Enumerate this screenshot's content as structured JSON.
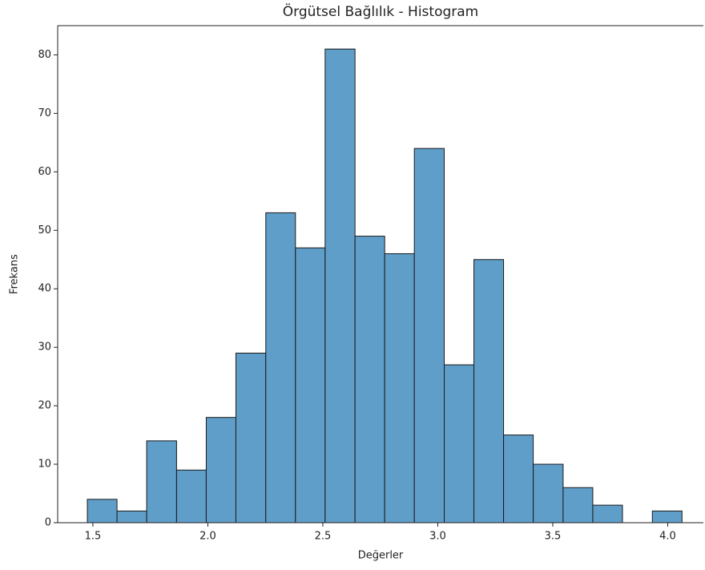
{
  "chart_data": {
    "type": "histogram",
    "title": "Örgütsel Bağlılık - Histogram",
    "x_label": "Değerler",
    "y_label": "Frekans",
    "bins": [
      1.476,
      1.605,
      1.734,
      1.864,
      1.993,
      2.122,
      2.252,
      2.381,
      2.51,
      2.64,
      2.769,
      2.898,
      3.028,
      3.157,
      3.286,
      3.415,
      3.545,
      3.674,
      3.803,
      3.933,
      4.062
    ],
    "counts": [
      4,
      2,
      14,
      9,
      18,
      29,
      53,
      47,
      81,
      49,
      46,
      64,
      27,
      45,
      15,
      10,
      6,
      3,
      0,
      2
    ],
    "color": "#5f9ec9",
    "edgecolor": "#1a1a1a",
    "xlim": [
      1.347,
      4.155
    ],
    "ylim": [
      0,
      85
    ],
    "xticks": [
      1.5,
      {
        "value": 2,
        "label": "2.0"
      },
      2.5,
      {
        "value": 3,
        "label": "3.0"
      },
      3.5,
      {
        "value": 4,
        "label": "4.0"
      }
    ],
    "yticks": [
      0,
      10,
      20,
      30,
      40,
      50,
      60,
      70,
      80
    ]
  }
}
